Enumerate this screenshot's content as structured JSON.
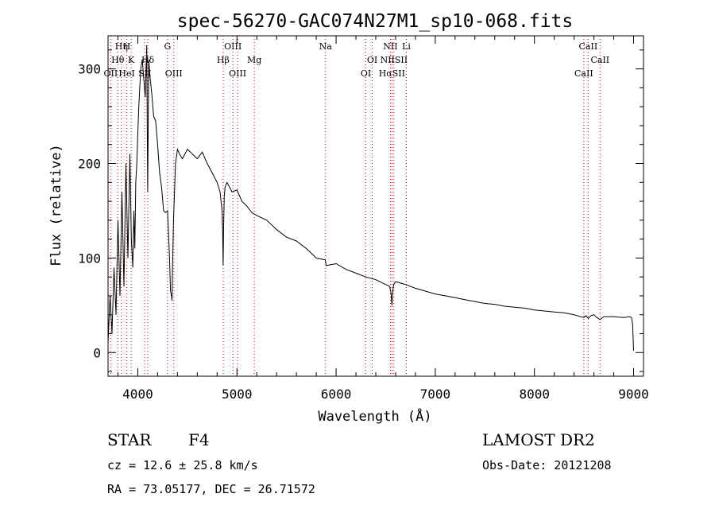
{
  "chart_data": {
    "type": "line",
    "title": "spec-56270-GAC074N27M1_sp10-068.fits",
    "xlabel": "Wavelength (Å)",
    "ylabel": "Flux (relative)",
    "xlim": [
      3700,
      9100
    ],
    "ylim": [
      -25,
      335
    ],
    "xticks": [
      4000,
      5000,
      6000,
      7000,
      8000,
      9000
    ],
    "yticks": [
      0,
      100,
      200,
      300
    ],
    "grid": false,
    "series": [
      {
        "x": [
          3700,
          3720,
          3740,
          3760,
          3780,
          3800,
          3820,
          3840,
          3860,
          3880,
          3900,
          3920,
          3935,
          3950,
          3960,
          3970,
          3980,
          3990,
          4000,
          4010,
          4020,
          4030,
          4045,
          4060,
          4075,
          4090,
          4100,
          4110,
          4125,
          4140,
          4160,
          4180,
          4200,
          4220,
          4240,
          4260,
          4280,
          4300,
          4320,
          4330,
          4340,
          4345,
          4350,
          4360,
          4380,
          4400,
          4420,
          4450,
          4500,
          4550,
          4600,
          4650,
          4700,
          4750,
          4800,
          4830,
          4850,
          4855,
          4861,
          4866,
          4872,
          4880,
          4900,
          4950,
          5000,
          5050,
          5100,
          5150,
          5200,
          5300,
          5400,
          5500,
          5600,
          5700,
          5800,
          5890,
          5900,
          6000,
          6100,
          6200,
          6300,
          6400,
          6500,
          6540,
          6555,
          6563,
          6570,
          6580,
          6600,
          6700,
          6800,
          6900,
          7000,
          7100,
          7200,
          7300,
          7400,
          7500,
          7600,
          7700,
          7800,
          7900,
          8000,
          8100,
          8200,
          8300,
          8400,
          8498,
          8520,
          8542,
          8570,
          8600,
          8630,
          8662,
          8700,
          8800,
          8900,
          8960,
          8980,
          8990,
          9000
        ],
        "y": [
          10,
          60,
          20,
          90,
          40,
          140,
          60,
          170,
          70,
          200,
          100,
          210,
          120,
          90,
          150,
          110,
          180,
          200,
          230,
          260,
          280,
          300,
          310,
          290,
          270,
          325,
          170,
          310,
          290,
          275,
          250,
          245,
          220,
          190,
          175,
          150,
          148,
          150,
          100,
          65,
          60,
          55,
          85,
          140,
          200,
          215,
          210,
          205,
          215,
          210,
          205,
          212,
          200,
          190,
          180,
          170,
          150,
          130,
          92,
          135,
          165,
          175,
          180,
          170,
          172,
          160,
          155,
          148,
          145,
          140,
          130,
          122,
          118,
          110,
          100,
          98,
          92,
          94,
          88,
          84,
          80,
          77,
          72,
          70,
          62,
          50,
          63,
          72,
          75,
          72,
          68,
          65,
          62,
          60,
          58,
          56,
          54,
          52,
          51,
          49,
          48,
          47,
          45,
          44,
          43,
          42,
          40,
          37,
          39,
          36,
          39,
          40,
          37,
          35,
          38,
          38,
          37,
          38,
          37,
          30,
          2
        ]
      }
    ],
    "lines": [
      {
        "name": "Hη",
        "x": 3835,
        "row": 1
      },
      {
        "name": "H",
        "x": 3889,
        "row": 1
      },
      {
        "name": "Hθ",
        "x": 3798,
        "row": 2
      },
      {
        "name": "K",
        "x": 3933,
        "row": 2
      },
      {
        "name": "Hδ",
        "x": 4101,
        "row": 2
      },
      {
        "name": "OII",
        "x": 3727,
        "row": 3
      },
      {
        "name": "HeI",
        "x": 3889,
        "row": 3
      },
      {
        "name": "SII",
        "x": 4070,
        "row": 3
      },
      {
        "name": "G",
        "x": 4300,
        "row": 1
      },
      {
        "name": "OIII",
        "x": 4363,
        "row": 3
      },
      {
        "name": "OIII",
        "x": 4959,
        "row": 1
      },
      {
        "name": "Hβ",
        "x": 4861,
        "row": 2
      },
      {
        "name": "OIII",
        "x": 5007,
        "row": 3
      },
      {
        "name": "Mg",
        "x": 5175,
        "row": 2
      },
      {
        "name": "Na",
        "x": 5893,
        "row": 1
      },
      {
        "name": "NII",
        "x": 6548,
        "row": 1
      },
      {
        "name": "Li",
        "x": 6708,
        "row": 1
      },
      {
        "name": "OI",
        "x": 6364,
        "row": 2
      },
      {
        "name": "OI",
        "x": 6300,
        "row": 3
      },
      {
        "name": "NIISII",
        "x": 6583,
        "row": 2
      },
      {
        "name": "HαSII",
        "x": 6563,
        "row": 3
      },
      {
        "name": "CaII",
        "x": 8542,
        "row": 1
      },
      {
        "name": "CaII",
        "x": 8662,
        "row": 2
      },
      {
        "name": "CaII",
        "x": 8498,
        "row": 3
      }
    ]
  },
  "footer": {
    "object_class": "STAR",
    "subclass": "F4",
    "survey": "LAMOST DR2",
    "cz": "cz = 12.6 ± 25.8 km/s",
    "obs_date": "Obs-Date: 20121208",
    "coords": "RA =  73.05177, DEC =  26.71572"
  },
  "colors": {
    "axis": "#000000",
    "spectrum": "#000000",
    "line_marker": "#cc0000"
  }
}
